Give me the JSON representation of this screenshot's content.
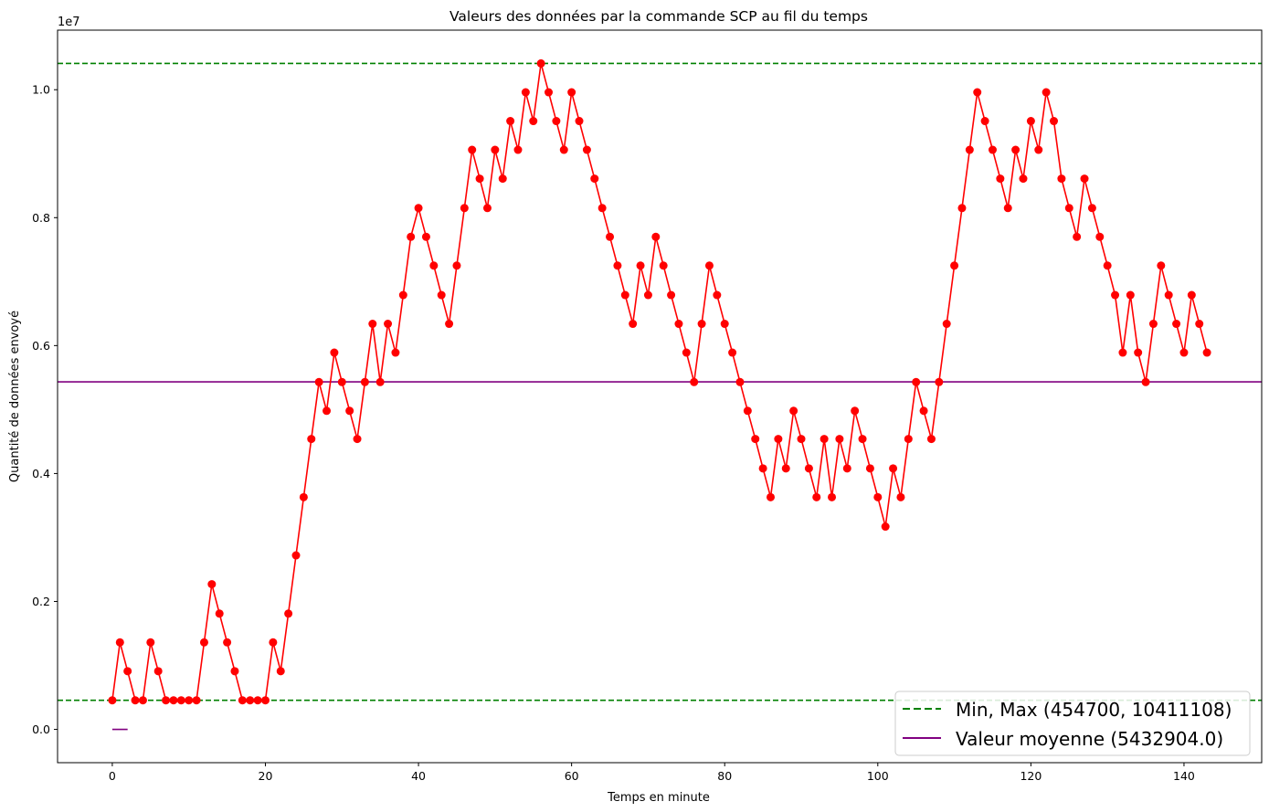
{
  "chart_data": {
    "type": "line",
    "title": "Valeurs des données par la commande SCP au fil du temps",
    "xlabel": "Temps en minute",
    "ylabel": "Quantité de données envoyé",
    "y_offset_label": "1e7",
    "xlim": [
      -7.15,
      150.15
    ],
    "ylim": [
      -520520,
      10931328
    ],
    "x_ticks": [
      0,
      20,
      40,
      60,
      80,
      100,
      120,
      140
    ],
    "x_tick_labels": [
      "0",
      "20",
      "40",
      "60",
      "80",
      "100",
      "120",
      "140"
    ],
    "y_ticks": [
      0,
      2000000,
      4000000,
      6000000,
      8000000,
      10000000
    ],
    "y_tick_labels": [
      "0.0",
      "0.2",
      "0.4",
      "0.6",
      "0.8",
      "1.0"
    ],
    "grid": false,
    "legend_position": "lower-right",
    "colors": {
      "series": "#ff0000",
      "minmax": "#008000",
      "mean": "#800080"
    },
    "series": [
      {
        "values": [
          454700,
          1360000,
          910000,
          454700,
          454700,
          1360000,
          910000,
          454700,
          454700,
          454700,
          454700,
          454700,
          1360000,
          2270000,
          1810000,
          1360000,
          910000,
          454700,
          454700,
          454700,
          454700,
          1360000,
          910000,
          1810000,
          2720000,
          3630000,
          4540000,
          5430000,
          4980000,
          5890000,
          5430000,
          4980000,
          4540000,
          5430000,
          6340000,
          5430000,
          6340000,
          5890000,
          6790000,
          7700000,
          8150000,
          7700000,
          7250000,
          6790000,
          6340000,
          7250000,
          8150000,
          9060000,
          8610000,
          8150000,
          9060000,
          8610000,
          9510000,
          9060000,
          9960000,
          9510000,
          10411108,
          9960000,
          9510000,
          9060000,
          9960000,
          9510000,
          9060000,
          8610000,
          8150000,
          7700000,
          7250000,
          6790000,
          6340000,
          7250000,
          6790000,
          7700000,
          7250000,
          6790000,
          6340000,
          5890000,
          5430000,
          6340000,
          7250000,
          6790000,
          6340000,
          5890000,
          5430000,
          4980000,
          4540000,
          4080000,
          3630000,
          4540000,
          4080000,
          4980000,
          4540000,
          4080000,
          3630000,
          4540000,
          3630000,
          4540000,
          4080000,
          4980000,
          4540000,
          4080000,
          3630000,
          3170000,
          4080000,
          3630000,
          4540000,
          5430000,
          4980000,
          4540000,
          5430000,
          6340000,
          7250000,
          8150000,
          9060000,
          9960000,
          9510000,
          9060000,
          8610000,
          8150000,
          9060000,
          8610000,
          9510000,
          9060000,
          9960000,
          9510000,
          8610000,
          8150000,
          7700000,
          8610000,
          8150000,
          7700000,
          7250000,
          6790000,
          5890000,
          6790000,
          5890000,
          5430000,
          6340000,
          7250000,
          6790000,
          6340000,
          5890000,
          6790000,
          6340000,
          5890000
        ]
      }
    ],
    "min_value": 454700,
    "max_value": 10411108,
    "mean_value": 5432904.0,
    "mean_stub": {
      "x": [
        0,
        2
      ],
      "y": 0
    },
    "legend": [
      {
        "label": "Min, Max (454700, 10411108)",
        "style": "dashed",
        "color": "#008000"
      },
      {
        "label": "Valeur moyenne (5432904.0)",
        "style": "solid",
        "color": "#800080"
      }
    ]
  }
}
